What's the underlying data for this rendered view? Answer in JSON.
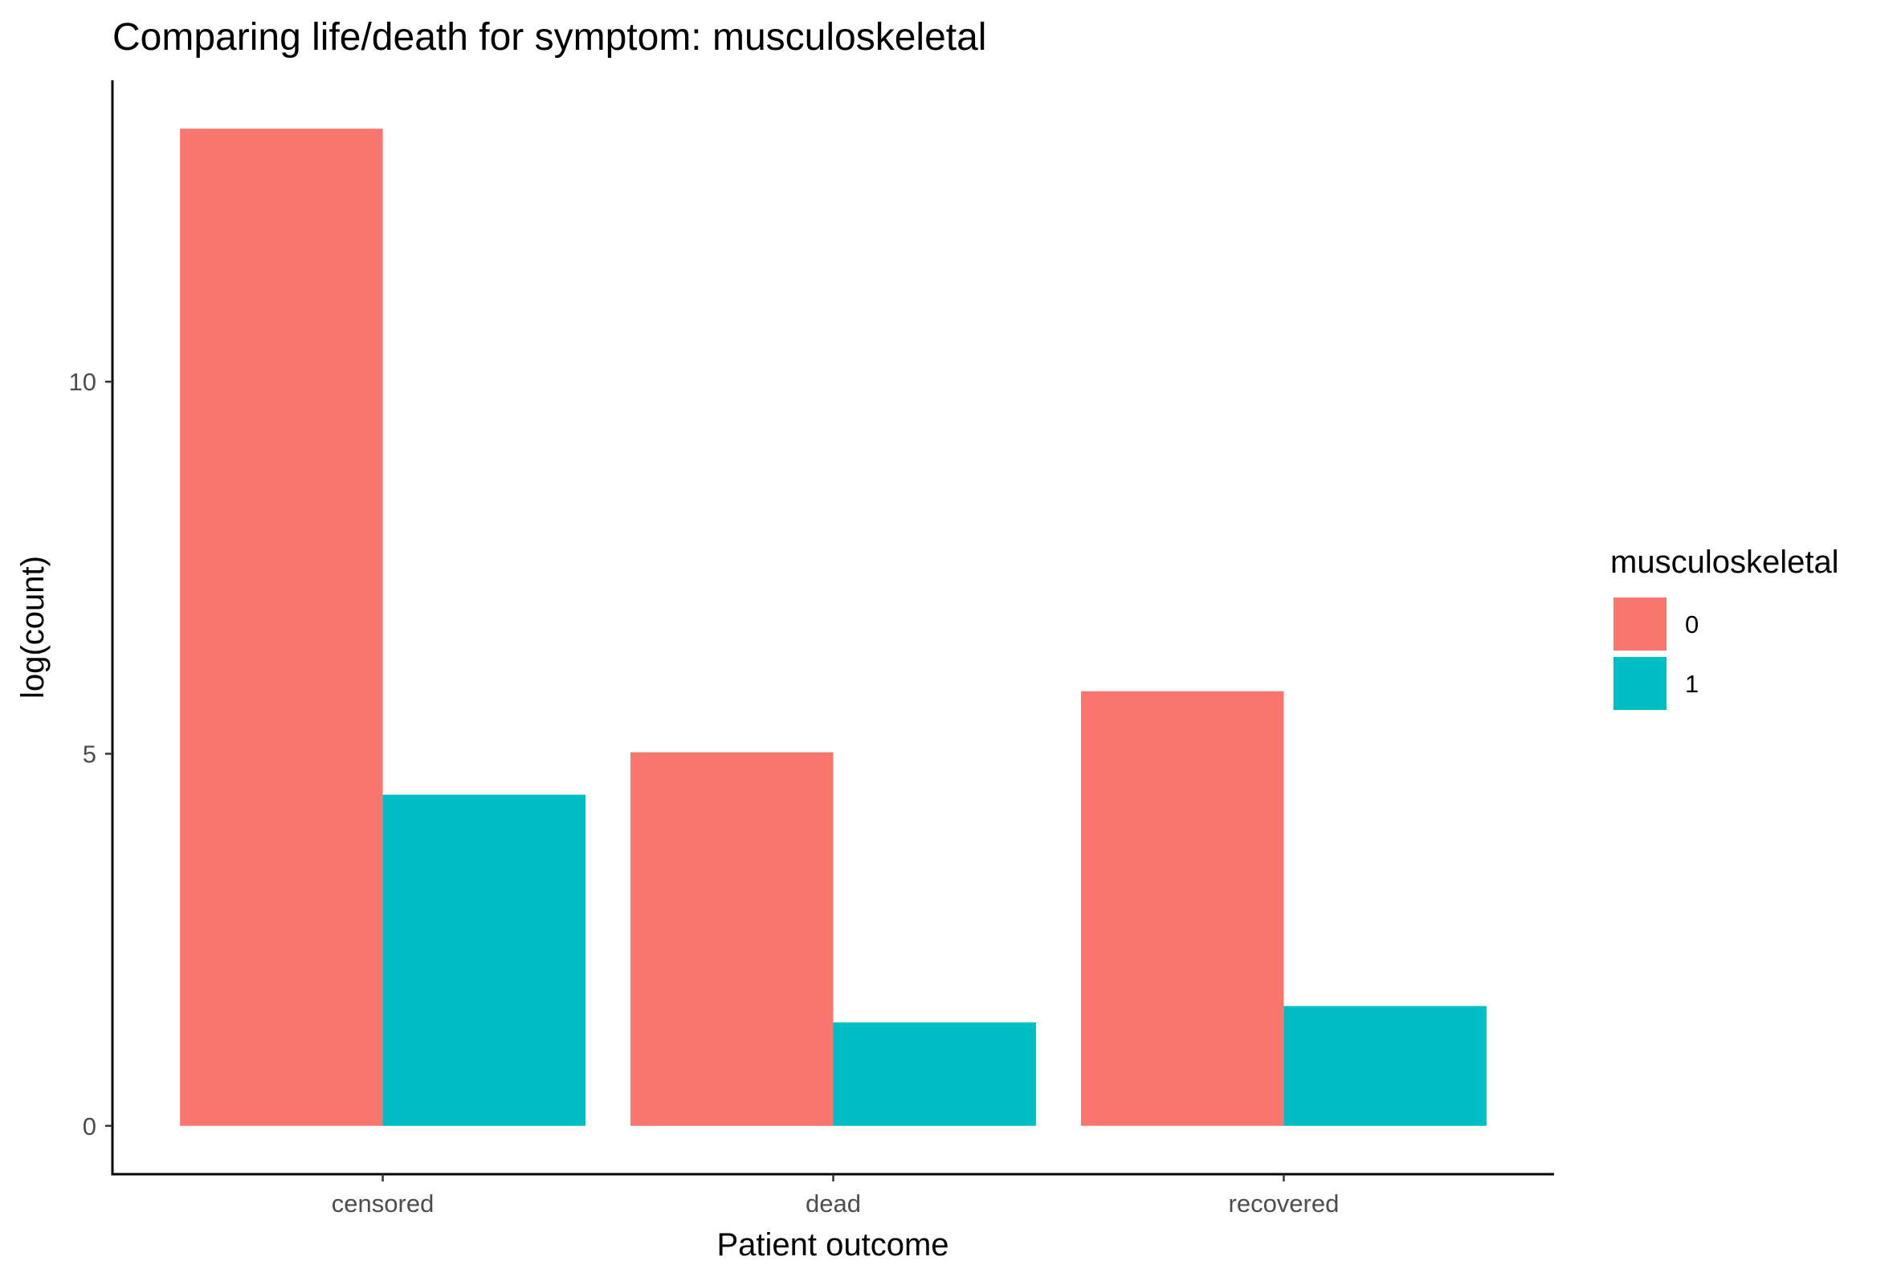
{
  "chart_data": {
    "type": "bar",
    "title": "Comparing life/death for symptom: musculoskeletal",
    "xlabel": "Patient outcome",
    "ylabel": "log(count)",
    "categories": [
      "censored",
      "dead",
      "recovered"
    ],
    "series": [
      {
        "name": "0",
        "color": "#F8766D",
        "values": [
          13.4,
          5.02,
          5.84
        ]
      },
      {
        "name": "1",
        "color": "#00BFC4",
        "values": [
          4.45,
          1.39,
          1.61
        ]
      }
    ],
    "ylim": [
      -0.65,
      14.05
    ],
    "yticks": [
      0,
      5,
      10
    ],
    "legend": {
      "title": "musculoskeletal",
      "position": "right"
    },
    "grid": false
  }
}
